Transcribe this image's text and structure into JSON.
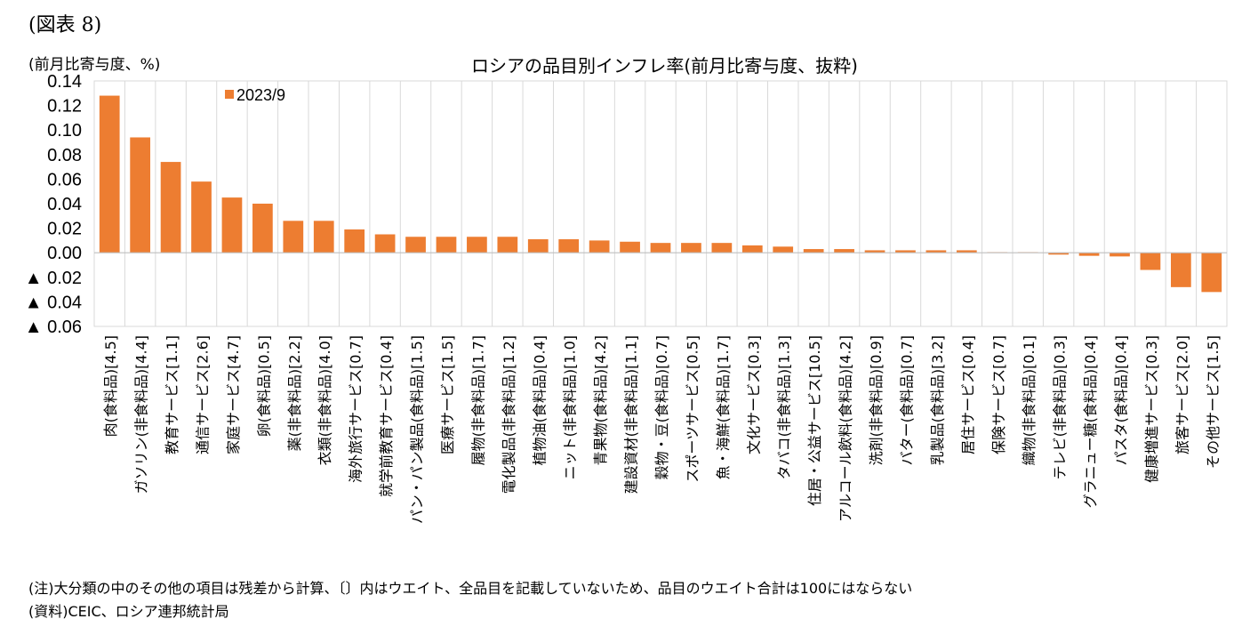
{
  "figure_label": "(図表 8)",
  "unit_label": "(前月比寄与度、%)",
  "notes": {
    "note": "(注)大分類の中のその他の項目は残差から計算、〔〕内はウエイト、全品目を記載していないため、品目のウエイト合計は100にはならない",
    "source": "(資料)CEIC、ロシア連邦統計局"
  },
  "chart_data": {
    "type": "bar",
    "title": "ロシアの品目別インフレ率(前月比寄与度、抜粋)",
    "xlabel": "",
    "ylabel": "(前月比寄与度、%)",
    "ylim": [
      -0.06,
      0.14
    ],
    "yticks": [
      0.14,
      0.12,
      0.1,
      0.08,
      0.06,
      0.04,
      0.02,
      0.0,
      -0.02,
      -0.04,
      -0.06
    ],
    "ytick_labels": [
      "0.14",
      "0.12",
      "0.10",
      "0.08",
      "0.06",
      "0.04",
      "0.02",
      "0.00",
      "▲ 0.02",
      "▲ 0.04",
      "▲ 0.06"
    ],
    "grid": "vertical",
    "legend_position": "top-left",
    "bar_color": "#ed7d31",
    "grid_color": "#d9d9d9",
    "categories": [
      "肉(食料品)[4.5]",
      "ガソリン(非食料品)[4.4]",
      "教育サービス[1.1]",
      "通信サービス[2.6]",
      "家庭サービス[4.7]",
      "卵(食料品)[0.5]",
      "薬(非食料品)[2.2]",
      "衣類(非食料品)[4.0]",
      "海外旅行サービス[0.7]",
      "就学前教育サービス[0.4]",
      "パン・パン製品(食料品)[1.5]",
      "医療サービス[1.5]",
      "履物(非食料品)[1.7]",
      "電化製品(非食料品)[1.2]",
      "植物油(食料品)[0.4]",
      "ニット(非食料品)[1.0]",
      "青果物(食料品)[4.2]",
      "建設資材(非食料品)[1.1]",
      "穀物・豆(食料品)[0.7]",
      "スポーツサービス[0.5]",
      "魚・海鮮(食料品)[1.7]",
      "文化サービス[0.3]",
      "タバコ(非食料品)[1.3]",
      "住居・公益サービス[10.5]",
      "アルコール飲料(食料品)[4.2]",
      "洗剤(非食料品)[0.9]",
      "バター(食料品)[0.7]",
      "乳製品(食料品)[3.2]",
      "居住サービス[0.4]",
      "保険サービス[0.7]",
      "織物(非食料品)[0.1]",
      "テレビ(非食料品)[0.3]",
      "グラニュー糖(食料品)[0.4]",
      "パスタ(食料品)[0.4]",
      "健康増進サービス[0.3]",
      "旅客サービス[2.0]",
      "その他サービス[1.5]"
    ],
    "series": [
      {
        "name": "2023/9",
        "values": [
          0.128,
          0.094,
          0.074,
          0.058,
          0.045,
          0.04,
          0.026,
          0.026,
          0.019,
          0.015,
          0.013,
          0.013,
          0.013,
          0.013,
          0.011,
          0.011,
          0.01,
          0.009,
          0.008,
          0.008,
          0.008,
          0.006,
          0.005,
          0.003,
          0.003,
          0.002,
          0.002,
          0.002,
          0.002,
          0.0005,
          0.0005,
          -0.0015,
          -0.0025,
          -0.003,
          -0.014,
          -0.028,
          -0.032
        ]
      }
    ]
  }
}
